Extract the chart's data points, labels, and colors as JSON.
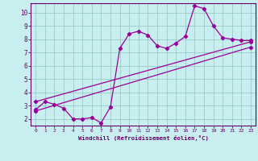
{
  "bg_color": "#c8eef0",
  "line_color": "#990099",
  "grid_color": "#99cccc",
  "axis_color": "#660066",
  "xlabel": "Windchill (Refroidissement éolien,°C)",
  "xlim": [
    -0.5,
    23.5
  ],
  "ylim": [
    1.5,
    10.7
  ],
  "yticks": [
    2,
    3,
    4,
    5,
    6,
    7,
    8,
    9,
    10
  ],
  "xticks": [
    0,
    1,
    2,
    3,
    4,
    5,
    6,
    7,
    8,
    9,
    10,
    11,
    12,
    13,
    14,
    15,
    16,
    17,
    18,
    19,
    20,
    21,
    22,
    23
  ],
  "line1_x": [
    0,
    1,
    2,
    3,
    4,
    5,
    6,
    7,
    8,
    9,
    10,
    11,
    12,
    13,
    14,
    15,
    16,
    17,
    18,
    19,
    20,
    21,
    22,
    23
  ],
  "line1_y": [
    2.7,
    3.3,
    3.1,
    2.8,
    2.0,
    2.0,
    2.1,
    1.7,
    2.9,
    7.3,
    8.4,
    8.6,
    8.3,
    7.5,
    7.3,
    7.7,
    8.2,
    10.5,
    10.3,
    9.0,
    8.1,
    8.0,
    7.9,
    7.9
  ],
  "line2_x": [
    0,
    23
  ],
  "line2_y": [
    2.6,
    7.4
  ],
  "line3_x": [
    0,
    23
  ],
  "line3_y": [
    3.3,
    7.8
  ]
}
